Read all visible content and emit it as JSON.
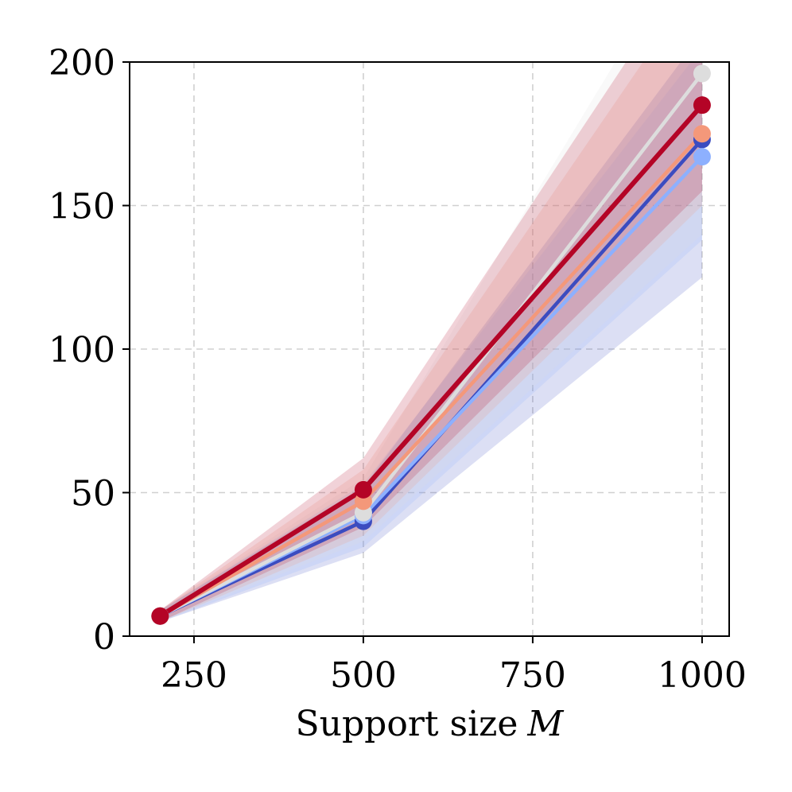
{
  "chart_data": {
    "type": "line",
    "title": "",
    "xlabel": "Support size",
    "xlabel_symbol": "M",
    "ylabel": "",
    "x": [
      200,
      500,
      1000
    ],
    "xlim": [
      155,
      1040
    ],
    "ylim": [
      0,
      200
    ],
    "xticks": [
      250,
      500,
      750,
      1000
    ],
    "yticks": [
      0,
      50,
      100,
      150,
      200
    ],
    "xtick_labels": [
      "250",
      "500",
      "750",
      "1000"
    ],
    "ytick_labels": [
      "0",
      "50",
      "100",
      "150",
      "200"
    ],
    "grid": true,
    "legend": "none",
    "series": [
      {
        "color": "#3b4cc0",
        "values": [
          7,
          40,
          173
        ],
        "band_low": [
          5,
          29,
          125
        ],
        "band_high": [
          9,
          52,
          210
        ]
      },
      {
        "color": "#8db0fe",
        "values": [
          7,
          42,
          167
        ],
        "band_low": [
          5,
          31,
          138
        ],
        "band_high": [
          9,
          53,
          205
        ]
      },
      {
        "color": "#dddddd",
        "values": [
          7,
          43,
          196
        ],
        "band_low": [
          5,
          33,
          140
        ],
        "band_high": [
          9,
          55,
          250
        ]
      },
      {
        "color": "#f4987a",
        "values": [
          7,
          47,
          175
        ],
        "band_low": [
          5,
          35,
          150
        ],
        "band_high": [
          9,
          58,
          230
        ]
      },
      {
        "color": "#b40426",
        "values": [
          7,
          51,
          185
        ],
        "band_low": [
          5,
          38,
          155
        ],
        "band_high": [
          9,
          62,
          240
        ]
      }
    ]
  }
}
